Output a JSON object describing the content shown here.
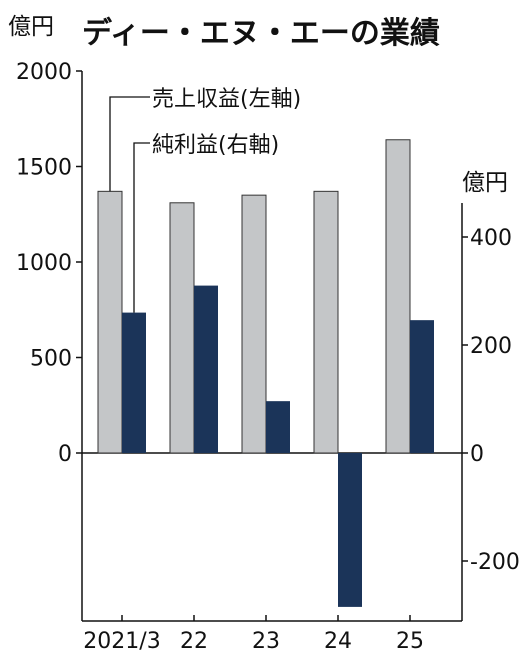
{
  "chart_data": {
    "type": "bar",
    "title": "ディー・エヌ・エーの業績",
    "left_axis": {
      "unit": "億円",
      "ticks": [
        2000,
        1500,
        1000,
        500,
        0
      ],
      "ylim": [
        -860,
        2000
      ]
    },
    "right_axis": {
      "unit": "億円",
      "ticks": [
        400,
        200,
        0,
        -200
      ],
      "ylim": [
        -285,
        470
      ]
    },
    "categories": [
      "2021/3",
      "22",
      "23",
      "24",
      "25"
    ],
    "series": [
      {
        "name": "売上収益(左軸)",
        "axis": "left",
        "color": "#c4c6c8",
        "values": [
          1370,
          1310,
          1350,
          1370,
          1640
        ]
      },
      {
        "name": "純利益(右軸)",
        "axis": "right",
        "color": "#1b3459",
        "values": [
          260,
          310,
          96,
          -285,
          246
        ]
      }
    ],
    "grid": false
  }
}
